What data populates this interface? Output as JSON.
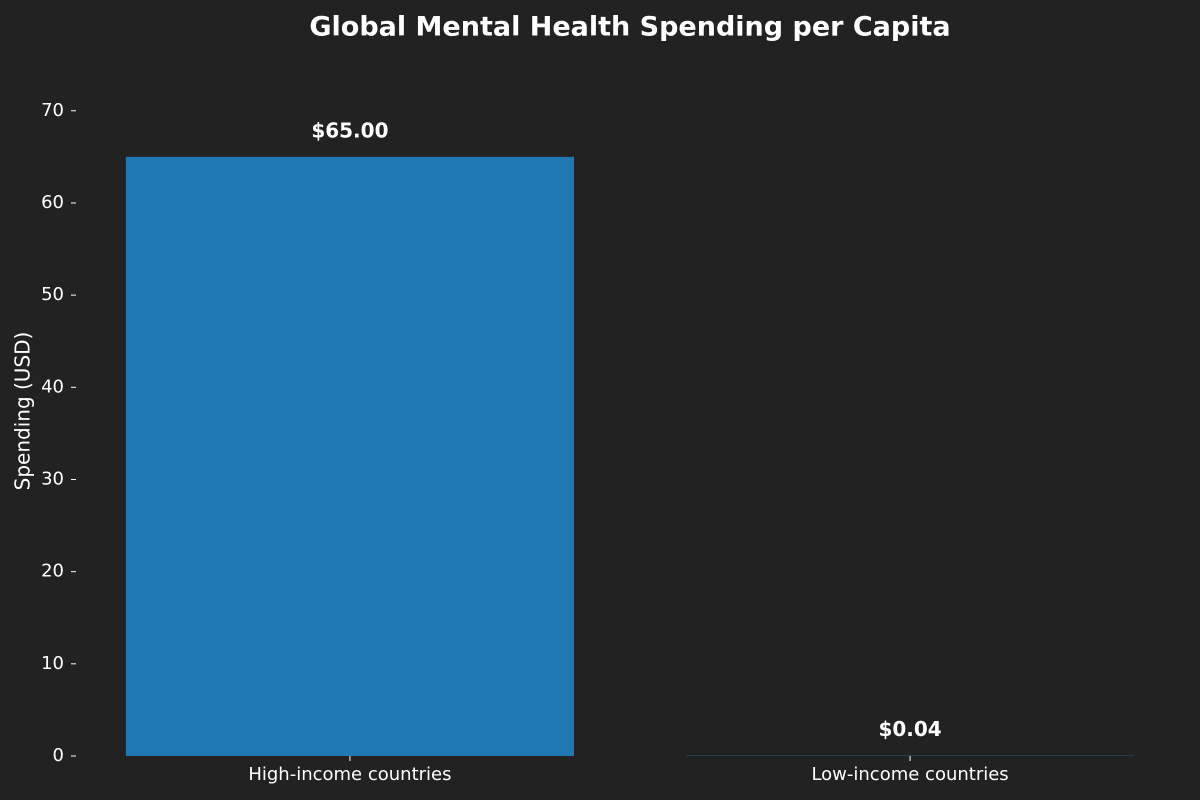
{
  "chart_data": {
    "type": "bar",
    "title": "Global Mental Health Spending per Capita",
    "y_label": "Spending (USD)",
    "categories": [
      "High-income countries",
      "Low-income countries"
    ],
    "values": [
      65,
      0.04
    ],
    "value_labels": [
      "$65.00",
      "$0.04"
    ],
    "color": "#1f77b4",
    "ylim": [
      0,
      74.75
    ],
    "yticks": [
      0,
      10,
      20,
      30,
      40,
      50,
      60,
      70
    ],
    "grid": false
  }
}
